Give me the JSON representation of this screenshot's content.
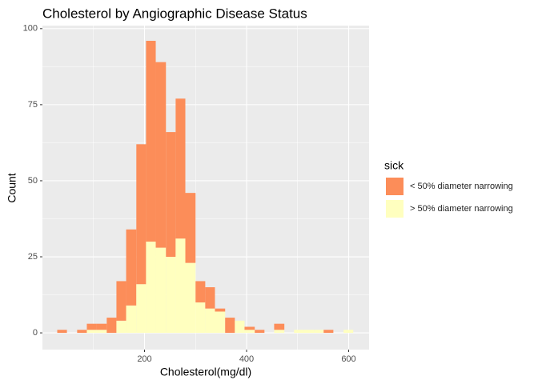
{
  "chart_data": {
    "type": "histogram",
    "title": "Cholesterol by Angiographic Disease Status",
    "x_label": "Cholesterol(mg/dl)",
    "y_label": "Count",
    "legend_title": "sick",
    "legend_position": "right",
    "stacked": true,
    "grid": true,
    "bins": [
      29,
      48,
      68,
      87,
      106,
      126,
      145,
      164,
      184,
      203,
      222,
      242,
      261,
      280,
      300,
      319,
      338,
      358,
      377,
      396,
      416,
      435,
      454,
      474,
      493,
      512,
      532,
      551,
      570,
      590,
      609
    ],
    "series": [
      {
        "name": "< 50% diameter narrowing",
        "color": "#fc8d59",
        "values": [
          1,
          0,
          1,
          2,
          2,
          5,
          13,
          25,
          46,
          66,
          61,
          41,
          46,
          23,
          7,
          7,
          1,
          5,
          0,
          1,
          1,
          0,
          2,
          0,
          0,
          0,
          0,
          1,
          0,
          0
        ]
      },
      {
        "name": "> 50% diameter narrowing",
        "color": "#ffffbf",
        "values": [
          0,
          0,
          0,
          1,
          1,
          0,
          4,
          9,
          16,
          30,
          28,
          25,
          31,
          23,
          10,
          8,
          7,
          0,
          4,
          1,
          0,
          0,
          1,
          0,
          1,
          1,
          1,
          0,
          0,
          1
        ]
      }
    ],
    "xlim": [
      0,
      640
    ],
    "xticks": [
      200,
      400,
      600
    ],
    "ylim": [
      -5.5,
      101
    ],
    "yticks": [
      0,
      25,
      50,
      75,
      100
    ]
  }
}
